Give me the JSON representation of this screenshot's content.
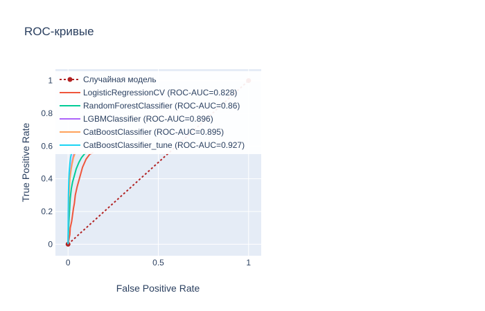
{
  "chart_data": {
    "type": "line",
    "title": "ROC-кривые",
    "xlabel": "False Positive Rate",
    "ylabel": "True Positive Rate",
    "xlim": [
      -0.07,
      1.07
    ],
    "ylim": [
      -0.07,
      1.07
    ],
    "x_ticks": [
      0,
      0.5,
      1
    ],
    "x_tick_labels": [
      "0",
      "0.5",
      "1"
    ],
    "y_ticks": [
      0,
      0.2,
      0.4,
      0.6,
      0.8,
      1
    ],
    "y_tick_labels": [
      "0",
      "0.2",
      "0.4",
      "0.6",
      "0.8",
      "1"
    ],
    "grid": true,
    "plot_background": "#e5ecf6",
    "legend_position": "top-left overlay",
    "series": [
      {
        "name": "Случайная модель",
        "color": "#b22222",
        "dash": "dot",
        "markers": true,
        "x": [
          0,
          1
        ],
        "y": [
          0,
          1
        ]
      },
      {
        "name": "LogisticRegressionCV (ROC-AUC=0.828)",
        "color": "#ef553b",
        "x": [
          0,
          0.01,
          0.012,
          0.02,
          0.025,
          0.03,
          0.035,
          0.04,
          0.05,
          0.06,
          0.07,
          0.08,
          0.1,
          0.12,
          0.14
        ],
        "y": [
          0,
          0.06,
          0.1,
          0.14,
          0.18,
          0.22,
          0.25,
          0.3,
          0.35,
          0.39,
          0.43,
          0.47,
          0.52,
          0.55,
          0.56
        ]
      },
      {
        "name": "RandomForestClassifier (ROC-AUC=0.86)",
        "color": "#00cc96",
        "x": [
          0,
          0.004,
          0.008,
          0.012,
          0.018,
          0.025,
          0.035,
          0.045,
          0.06,
          0.075,
          0.09,
          0.1
        ],
        "y": [
          0,
          0.12,
          0.2,
          0.28,
          0.34,
          0.38,
          0.42,
          0.46,
          0.5,
          0.53,
          0.55,
          0.56
        ]
      },
      {
        "name": "LGBMClassifier (ROC-AUC=0.896)",
        "color": "#ab63fa",
        "x": [
          0,
          0.003,
          0.006,
          0.01,
          0.015,
          0.02,
          0.028,
          0.035
        ],
        "y": [
          0,
          0.24,
          0.34,
          0.41,
          0.45,
          0.49,
          0.53,
          0.56
        ]
      },
      {
        "name": "CatBoostClassifier (ROC-AUC=0.895)",
        "color": "#ffa15a",
        "x": [
          0,
          0.003,
          0.006,
          0.01,
          0.016,
          0.022,
          0.03,
          0.04
        ],
        "y": [
          0,
          0.22,
          0.33,
          0.4,
          0.45,
          0.49,
          0.53,
          0.56
        ]
      },
      {
        "name": "CatBoostClassifier_tune (ROC-AUC=0.927)",
        "color": "#19d3f3",
        "x": [
          0,
          0.002,
          0.004,
          0.006,
          0.01,
          0.014,
          0.02
        ],
        "y": [
          0,
          0.3,
          0.39,
          0.44,
          0.49,
          0.53,
          0.56
        ]
      }
    ]
  }
}
